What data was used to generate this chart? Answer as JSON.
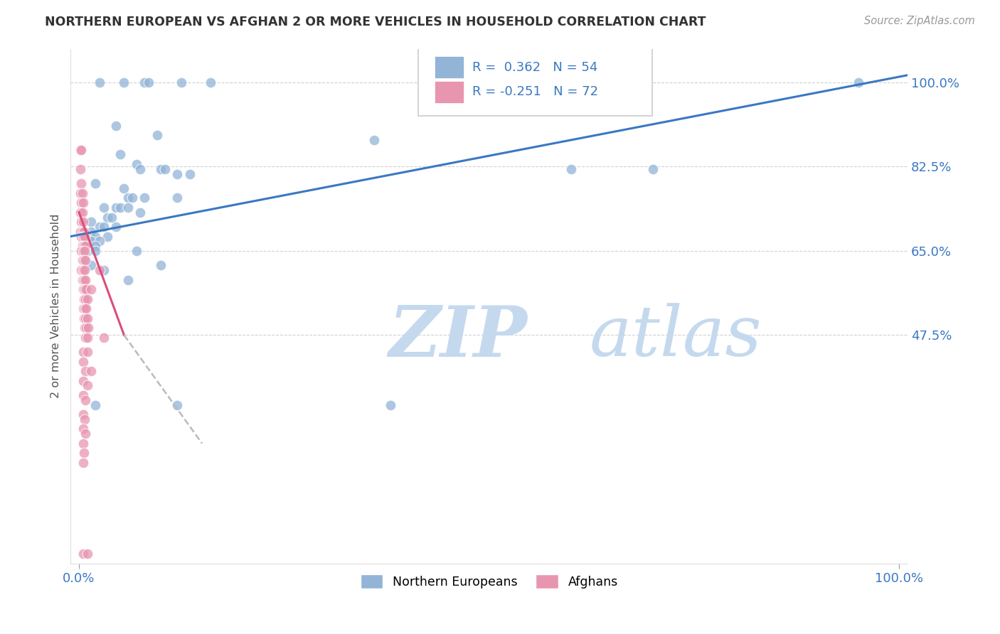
{
  "title": "NORTHERN EUROPEAN VS AFGHAN 2 OR MORE VEHICLES IN HOUSEHOLD CORRELATION CHART",
  "source": "Source: ZipAtlas.com",
  "ylabel": "2 or more Vehicles in Household",
  "watermark_zip": "ZIP",
  "watermark_atlas": "atlas",
  "ytick_labels": [
    "47.5%",
    "65.0%",
    "82.5%",
    "100.0%"
  ],
  "ytick_vals": [
    47.5,
    65.0,
    82.5,
    100.0
  ],
  "ymin": 0.0,
  "ymax": 107.0,
  "xmin": -1.0,
  "xmax": 101.0,
  "blue_color": "#92b4d7",
  "pink_color": "#e896b0",
  "blue_line_color": "#3a78c3",
  "pink_line_color": "#d94f7a",
  "blue_scatter": [
    [
      2.5,
      100
    ],
    [
      5.5,
      100
    ],
    [
      8.0,
      100
    ],
    [
      8.5,
      100
    ],
    [
      12.5,
      100
    ],
    [
      16.0,
      100
    ],
    [
      95.0,
      100
    ],
    [
      4.5,
      91
    ],
    [
      9.5,
      89
    ],
    [
      5.0,
      85
    ],
    [
      7.0,
      83
    ],
    [
      7.5,
      82
    ],
    [
      10.0,
      82
    ],
    [
      10.5,
      82
    ],
    [
      12.0,
      81
    ],
    [
      13.5,
      81
    ],
    [
      2.0,
      79
    ],
    [
      5.5,
      78
    ],
    [
      6.0,
      76
    ],
    [
      6.5,
      76
    ],
    [
      8.0,
      76
    ],
    [
      12.0,
      76
    ],
    [
      3.0,
      74
    ],
    [
      4.5,
      74
    ],
    [
      5.0,
      74
    ],
    [
      6.0,
      74
    ],
    [
      7.5,
      73
    ],
    [
      3.5,
      72
    ],
    [
      4.0,
      72
    ],
    [
      1.5,
      71
    ],
    [
      2.5,
      70
    ],
    [
      3.0,
      70
    ],
    [
      4.5,
      70
    ],
    [
      0.5,
      69
    ],
    [
      1.5,
      69
    ],
    [
      2.0,
      68
    ],
    [
      3.5,
      68
    ],
    [
      0.5,
      67
    ],
    [
      1.5,
      67
    ],
    [
      2.5,
      67
    ],
    [
      1.0,
      66
    ],
    [
      2.0,
      66
    ],
    [
      0.5,
      65
    ],
    [
      1.0,
      65
    ],
    [
      2.0,
      65
    ],
    [
      7.0,
      65
    ],
    [
      0.5,
      63
    ],
    [
      1.5,
      62
    ],
    [
      10.0,
      62
    ],
    [
      3.0,
      61
    ],
    [
      6.0,
      59
    ],
    [
      36.0,
      88
    ],
    [
      60.0,
      82
    ],
    [
      70.0,
      82
    ],
    [
      2.0,
      33
    ],
    [
      12.0,
      33
    ],
    [
      38.0,
      33
    ]
  ],
  "pink_scatter": [
    [
      0.2,
      86
    ],
    [
      0.3,
      86
    ],
    [
      0.2,
      82
    ],
    [
      0.3,
      79
    ],
    [
      0.2,
      77
    ],
    [
      0.4,
      77
    ],
    [
      0.3,
      75
    ],
    [
      0.5,
      75
    ],
    [
      0.2,
      73
    ],
    [
      0.4,
      73
    ],
    [
      0.3,
      71
    ],
    [
      0.5,
      71
    ],
    [
      0.2,
      69
    ],
    [
      0.4,
      69
    ],
    [
      0.6,
      69
    ],
    [
      0.3,
      68
    ],
    [
      0.5,
      68
    ],
    [
      0.7,
      68
    ],
    [
      0.4,
      66
    ],
    [
      0.6,
      66
    ],
    [
      0.8,
      66
    ],
    [
      0.3,
      65
    ],
    [
      0.5,
      65
    ],
    [
      0.7,
      65
    ],
    [
      0.4,
      63
    ],
    [
      0.6,
      63
    ],
    [
      0.8,
      63
    ],
    [
      0.3,
      61
    ],
    [
      0.5,
      61
    ],
    [
      0.7,
      61
    ],
    [
      0.4,
      59
    ],
    [
      0.6,
      59
    ],
    [
      0.8,
      59
    ],
    [
      0.5,
      57
    ],
    [
      0.7,
      57
    ],
    [
      0.9,
      57
    ],
    [
      0.6,
      55
    ],
    [
      0.8,
      55
    ],
    [
      1.0,
      55
    ],
    [
      0.5,
      53
    ],
    [
      0.7,
      53
    ],
    [
      0.9,
      53
    ],
    [
      0.6,
      51
    ],
    [
      0.8,
      51
    ],
    [
      1.0,
      51
    ],
    [
      0.7,
      49
    ],
    [
      0.9,
      49
    ],
    [
      1.1,
      49
    ],
    [
      0.8,
      47
    ],
    [
      1.0,
      47
    ],
    [
      2.5,
      61
    ],
    [
      1.5,
      57
    ],
    [
      3.0,
      47
    ],
    [
      0.5,
      44
    ],
    [
      1.0,
      44
    ],
    [
      0.5,
      42
    ],
    [
      0.8,
      40
    ],
    [
      1.5,
      40
    ],
    [
      0.5,
      38
    ],
    [
      1.0,
      37
    ],
    [
      0.5,
      35
    ],
    [
      0.8,
      34
    ],
    [
      0.5,
      31
    ],
    [
      0.7,
      30
    ],
    [
      0.5,
      28
    ],
    [
      0.8,
      27
    ],
    [
      0.5,
      25
    ],
    [
      0.6,
      23
    ],
    [
      0.5,
      21
    ],
    [
      0.5,
      2
    ],
    [
      1.0,
      2
    ]
  ],
  "blue_trendline": [
    [
      -1.0,
      68.0
    ],
    [
      101.0,
      101.5
    ]
  ],
  "pink_trendline_solid": [
    [
      0.0,
      73.0
    ],
    [
      5.5,
      47.5
    ]
  ],
  "pink_trendline_dash": [
    [
      5.5,
      47.5
    ],
    [
      15.0,
      25.0
    ]
  ]
}
